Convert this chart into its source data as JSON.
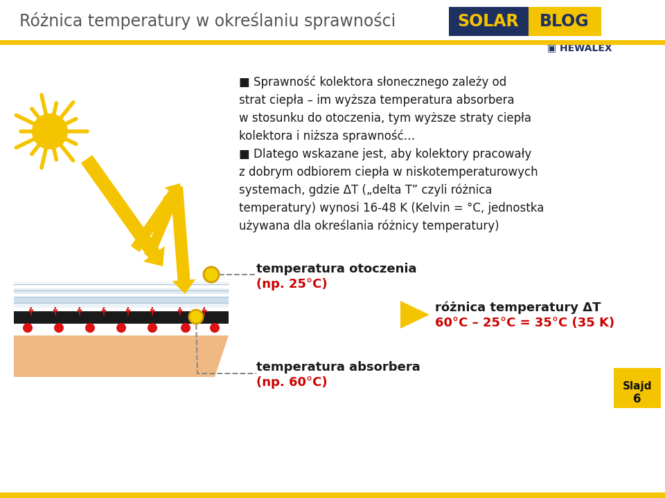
{
  "title": "Różnica temperatury w określaniu sprawności",
  "title_color": "#555555",
  "title_fontsize": 17,
  "bg_color": "#ffffff",
  "accent_color": "#f5c400",
  "header_line_color": "#f5c400",
  "text_main_color": "#1a1a1a",
  "text_red_color": "#cc0000",
  "solar_text_yellow": "#f5c400",
  "solar_bg_dark": "#1e3060",
  "solar_bg_yellow": "#f5c400",
  "label_otoczenia_line1": "temperatura otoczenia",
  "label_otoczenia_line2": "(np. 25°C)",
  "label_absorbera_line1": "temperatura absorbera",
  "label_absorbera_line2": "(np. 60°C)",
  "label_roznica_line1": "różnica temperatury ΔT",
  "label_roznica_line2": "60°C – 25°C = 35°C (35 K)",
  "slajd_bg": "#f5c400",
  "bottom_bar_color": "#f5c400",
  "sun_color": "#f5c400",
  "arrow_color": "#f5c400",
  "glass_color1": "#c5d8e8",
  "glass_color2": "#d5e4ee",
  "absorber_color": "#1a1a1a",
  "ground_color": "#f0b882",
  "dot_color": "#dd1111",
  "dashed_line_color": "#888888"
}
